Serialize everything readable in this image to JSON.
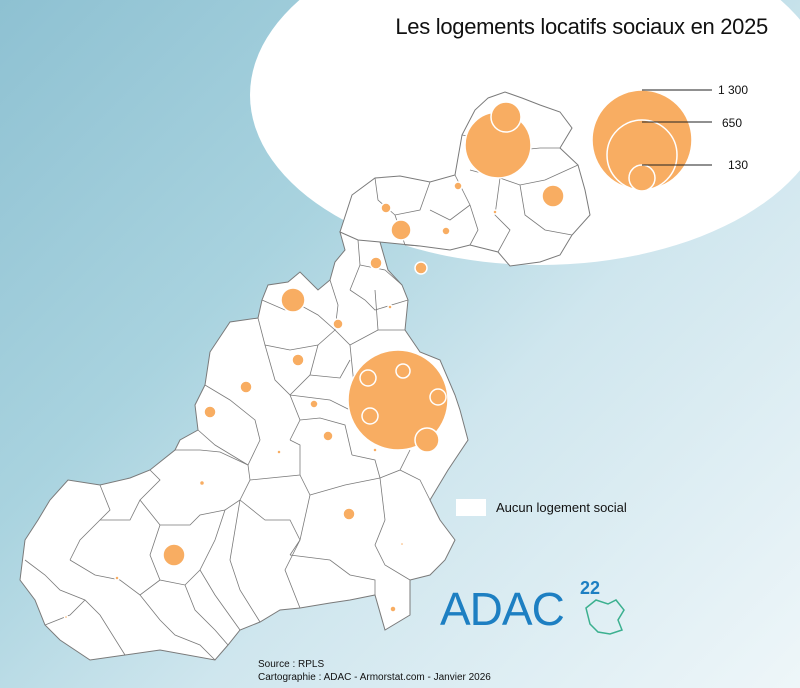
{
  "map": {
    "title": "Les logements locatifs sociaux en 2025",
    "legend": {
      "sizes": [
        "1 300",
        "650",
        "130"
      ],
      "no_data_label": "Aucun logement social"
    },
    "source": "Source : RPLS",
    "credits": "Cartographie : ADAC - Armorstat.com - Janvier 2026",
    "logo": {
      "text": "ADAC",
      "number": "22"
    },
    "colors": {
      "symbol": "#f8ad62",
      "commune_fill": "#ffffff",
      "commune_stroke": "#7a7a7a",
      "logo": "#1d7fc2",
      "logo_accent": "#3bb08f"
    }
  }
}
